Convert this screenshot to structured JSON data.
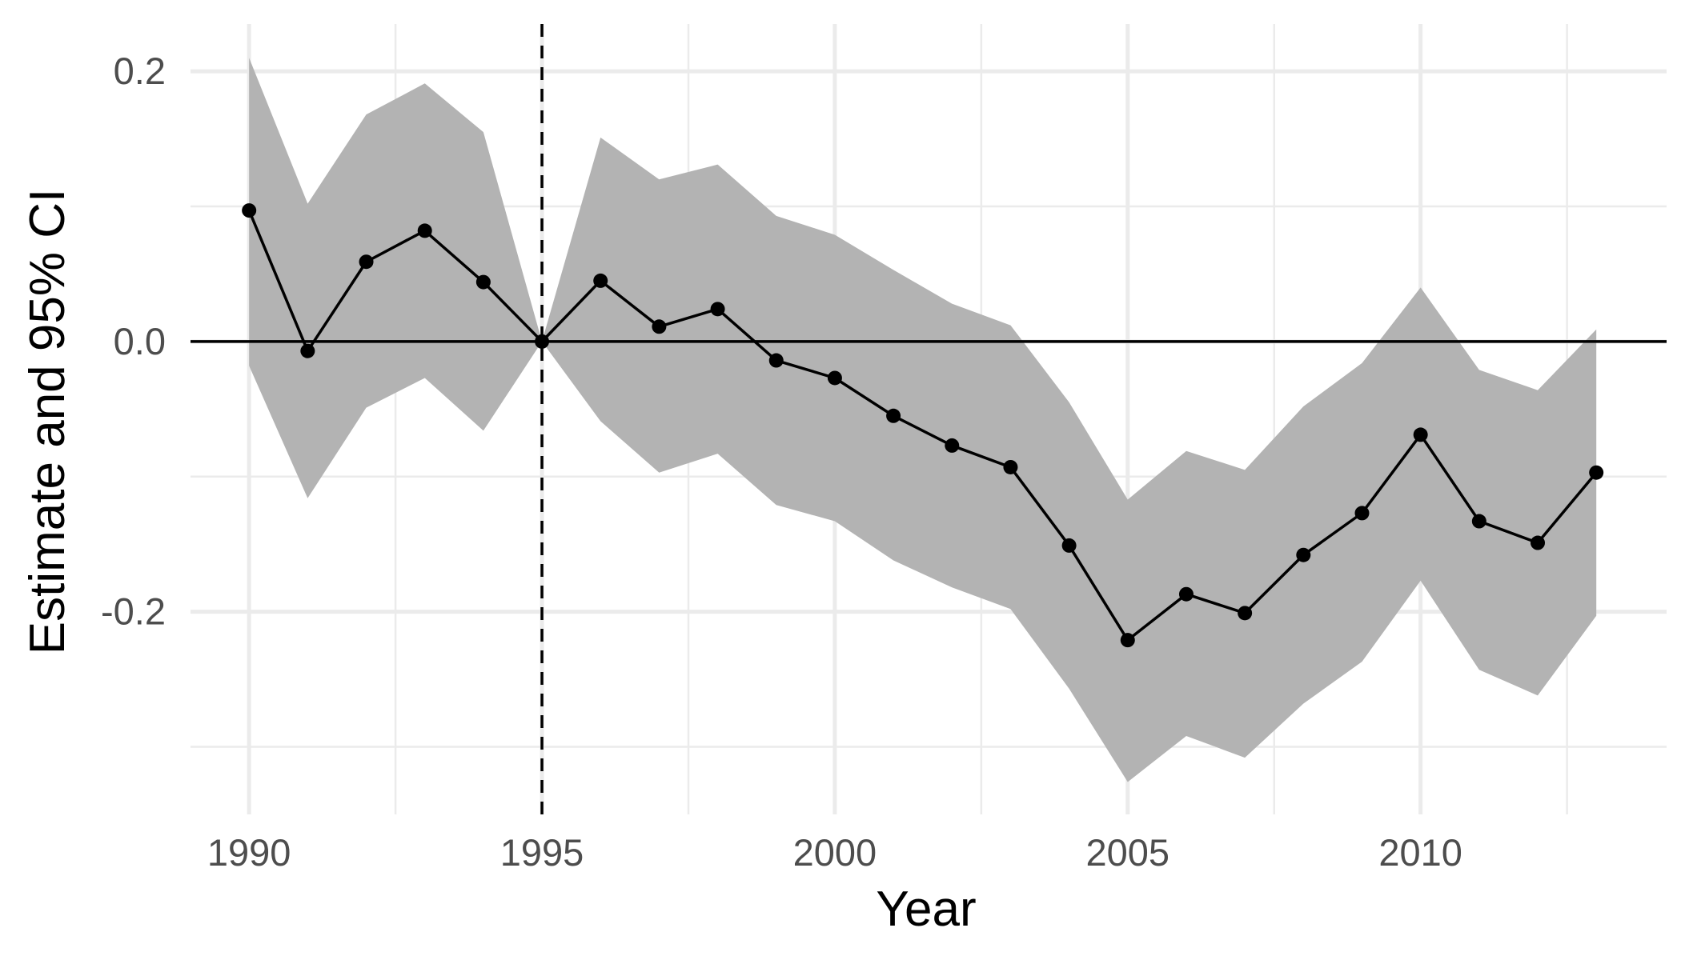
{
  "chart_data": {
    "type": "line",
    "title": "",
    "xlabel": "Year",
    "ylabel": "Estimate and 95% CI",
    "xlim": [
      1989,
      2014.2
    ],
    "ylim": [
      -0.35,
      0.235
    ],
    "x_ticks": [
      1990,
      1995,
      2000,
      2005,
      2010
    ],
    "y_ticks": [
      0.2,
      0.0,
      -0.2
    ],
    "y_tick_labels": [
      "0.2",
      "0.0",
      "-0.2"
    ],
    "x_minor_gridlines": [
      1992.5,
      1997.5,
      2002.5,
      2007.5,
      2012.5
    ],
    "y_minor_gridlines": [
      0.1,
      -0.1,
      -0.3
    ],
    "grid": true,
    "reference_lines": {
      "horizontal_y": 0,
      "vertical_dashed_x": 1995
    },
    "colors": {
      "ribbon": "#b3b3b3",
      "line": "#000000",
      "grid": "#ebebeb"
    },
    "series": [
      {
        "x": [
          1990,
          1991,
          1992,
          1993,
          1994,
          1995,
          1996,
          1997,
          1998,
          1999,
          2000,
          2001,
          2002,
          2003,
          2004,
          2005,
          2006,
          2007,
          2008,
          2009,
          2010,
          2011,
          2012,
          2013
        ],
        "estimate": [
          0.097,
          -0.007,
          0.059,
          0.082,
          0.044,
          0.0,
          0.045,
          0.011,
          0.024,
          -0.014,
          -0.027,
          -0.055,
          -0.077,
          -0.093,
          -0.151,
          -0.221,
          -0.187,
          -0.201,
          -0.158,
          -0.127,
          -0.069,
          -0.133,
          -0.149,
          -0.097
        ],
        "ci_lower": [
          -0.018,
          -0.116,
          -0.049,
          -0.027,
          -0.066,
          0.0,
          -0.059,
          -0.097,
          -0.083,
          -0.121,
          -0.133,
          -0.162,
          -0.182,
          -0.198,
          -0.257,
          -0.326,
          -0.292,
          -0.308,
          -0.268,
          -0.237,
          -0.177,
          -0.243,
          -0.262,
          -0.203
        ],
        "ci_upper": [
          0.21,
          0.102,
          0.168,
          0.191,
          0.155,
          0.0,
          0.151,
          0.12,
          0.131,
          0.093,
          0.079,
          0.053,
          0.028,
          0.012,
          -0.045,
          -0.117,
          -0.081,
          -0.095,
          -0.048,
          -0.016,
          0.04,
          -0.021,
          -0.036,
          0.009
        ]
      }
    ]
  }
}
